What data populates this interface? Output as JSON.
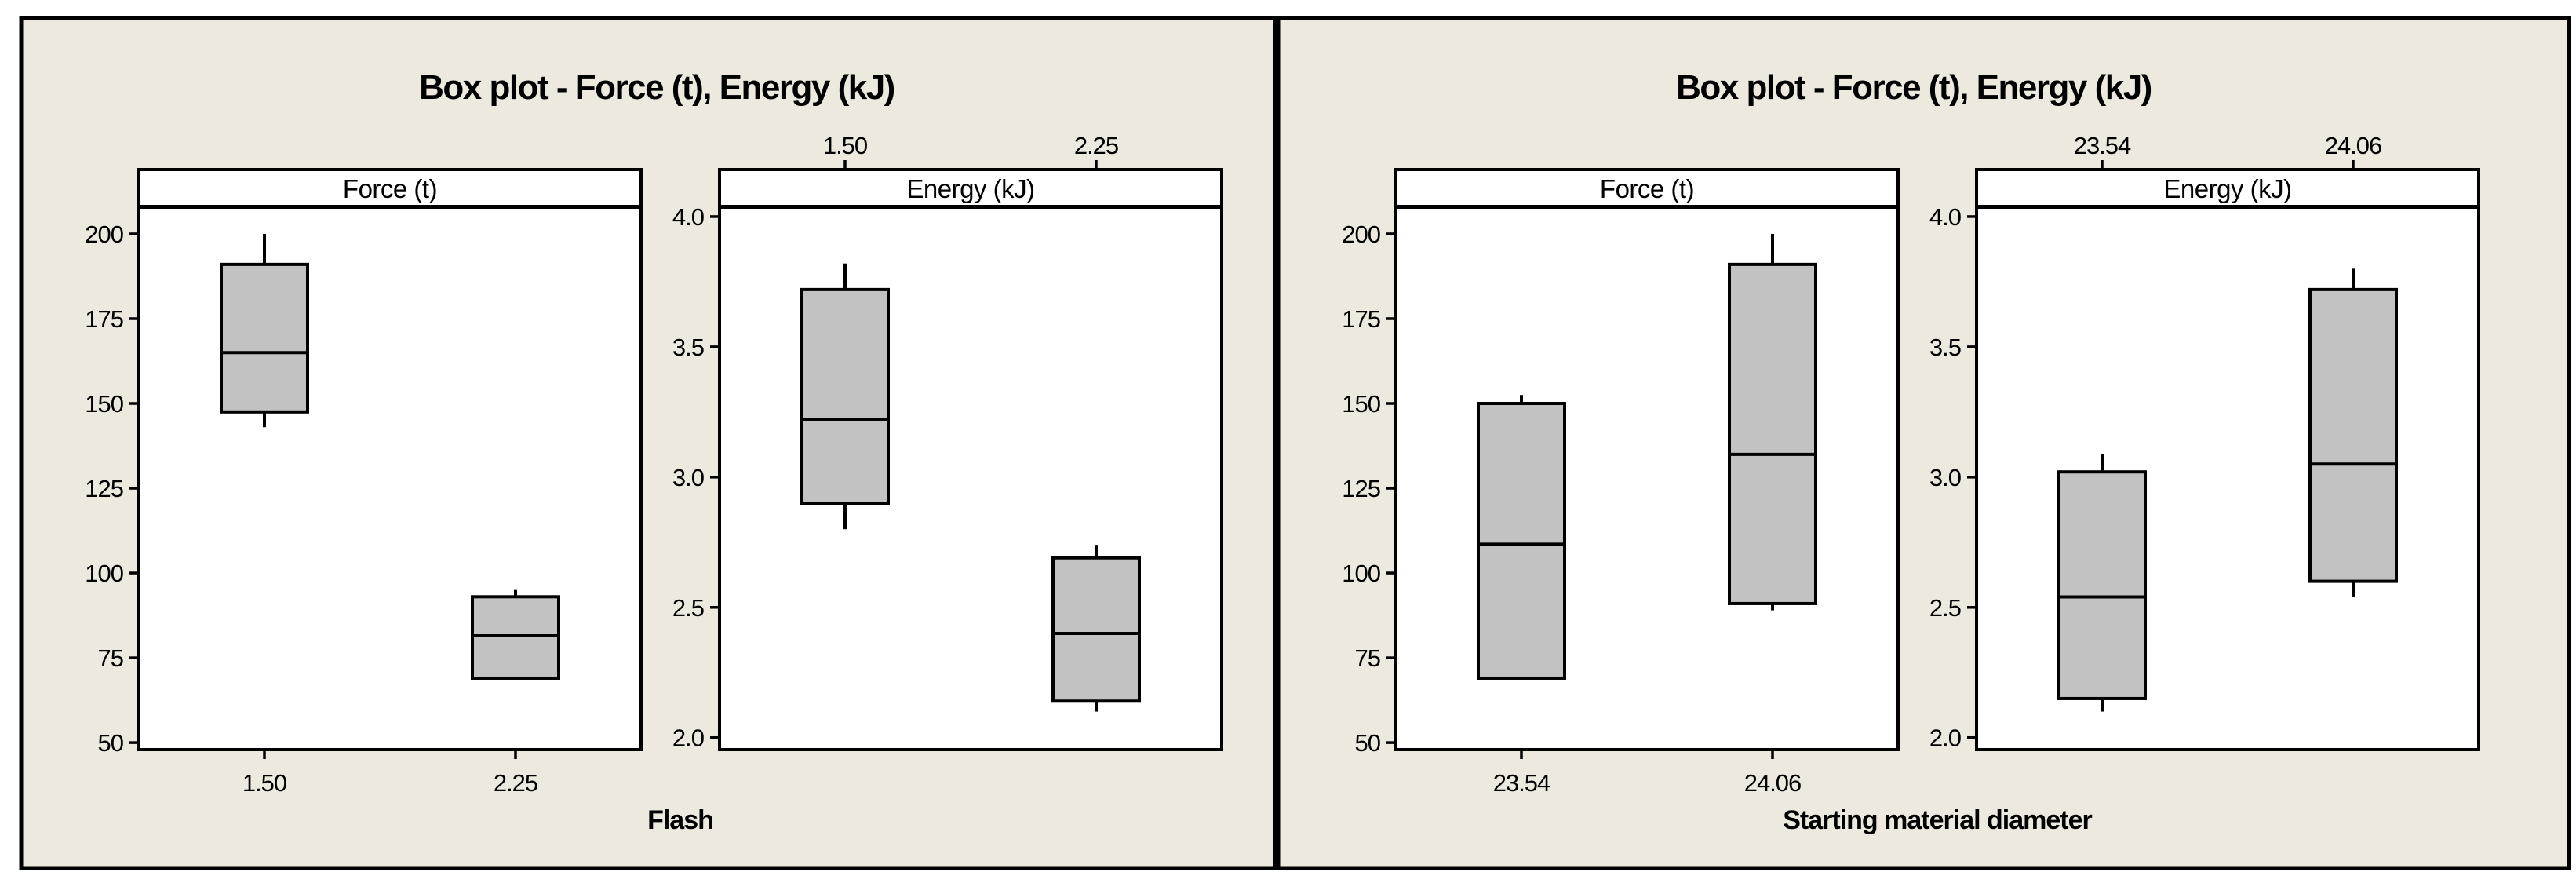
{
  "colors": {
    "figure_bg": "#ffffff",
    "panel_bg": "#EDE9DF",
    "plot_bg": "#ffffff",
    "box_fill": "#C2C2C2",
    "line": "#000000"
  },
  "chart_data": [
    {
      "type": "box",
      "title": "Box plot - Force (t), Energy (kJ)",
      "xlabel": "Flash",
      "categories": [
        "1.50",
        "2.25"
      ],
      "legend": "none",
      "grid": false,
      "subplots": [
        {
          "label": "Force (t)",
          "axis_labels_position": "bottom",
          "ylim": [
            48.4,
            207.4
          ],
          "yticks": [
            "200",
            "175",
            "150",
            "125",
            "100",
            "75",
            "50"
          ],
          "series": [
            {
              "category": "1.50",
              "min": 143,
              "q1": 147.5,
              "median": 165,
              "q3": 191,
              "max": 200
            },
            {
              "category": "2.25",
              "min": 69,
              "q1": 69,
              "median": 81.5,
              "q3": 93,
              "max": 95
            }
          ]
        },
        {
          "label": "Energy (kJ)",
          "axis_labels_position": "top",
          "ylim": [
            1.96,
            4.03
          ],
          "yticks": [
            "4.0",
            "3.5",
            "3.0",
            "2.5",
            "2.0"
          ],
          "series": [
            {
              "category": "1.50",
              "min": 2.8,
              "q1": 2.9,
              "median": 3.22,
              "q3": 3.72,
              "max": 3.82
            },
            {
              "category": "2.25",
              "min": 2.1,
              "q1": 2.14,
              "median": 2.4,
              "q3": 2.69,
              "max": 2.74
            }
          ]
        }
      ]
    },
    {
      "type": "box",
      "title": "Box plot - Force (t), Energy (kJ)",
      "xlabel": "Starting material diameter",
      "categories": [
        "23.54",
        "24.06"
      ],
      "legend": "none",
      "grid": false,
      "subplots": [
        {
          "label": "Force (t)",
          "axis_labels_position": "bottom",
          "ylim": [
            48.4,
            207.4
          ],
          "yticks": [
            "200",
            "175",
            "150",
            "125",
            "100",
            "75",
            "50"
          ],
          "series": [
            {
              "category": "23.54",
              "min": 69,
              "q1": 69,
              "median": 108.5,
              "q3": 150,
              "max": 152.5
            },
            {
              "category": "24.06",
              "min": 89,
              "q1": 91,
              "median": 135,
              "q3": 191,
              "max": 200
            }
          ]
        },
        {
          "label": "Energy (kJ)",
          "axis_labels_position": "top",
          "ylim": [
            1.96,
            4.03
          ],
          "yticks": [
            "4.0",
            "3.5",
            "3.0",
            "2.5",
            "2.0"
          ],
          "series": [
            {
              "category": "23.54",
              "min": 2.1,
              "q1": 2.15,
              "median": 2.54,
              "q3": 3.02,
              "max": 3.09
            },
            {
              "category": "24.06",
              "min": 2.54,
              "q1": 2.6,
              "median": 3.05,
              "q3": 3.72,
              "max": 3.8
            }
          ]
        }
      ]
    }
  ]
}
